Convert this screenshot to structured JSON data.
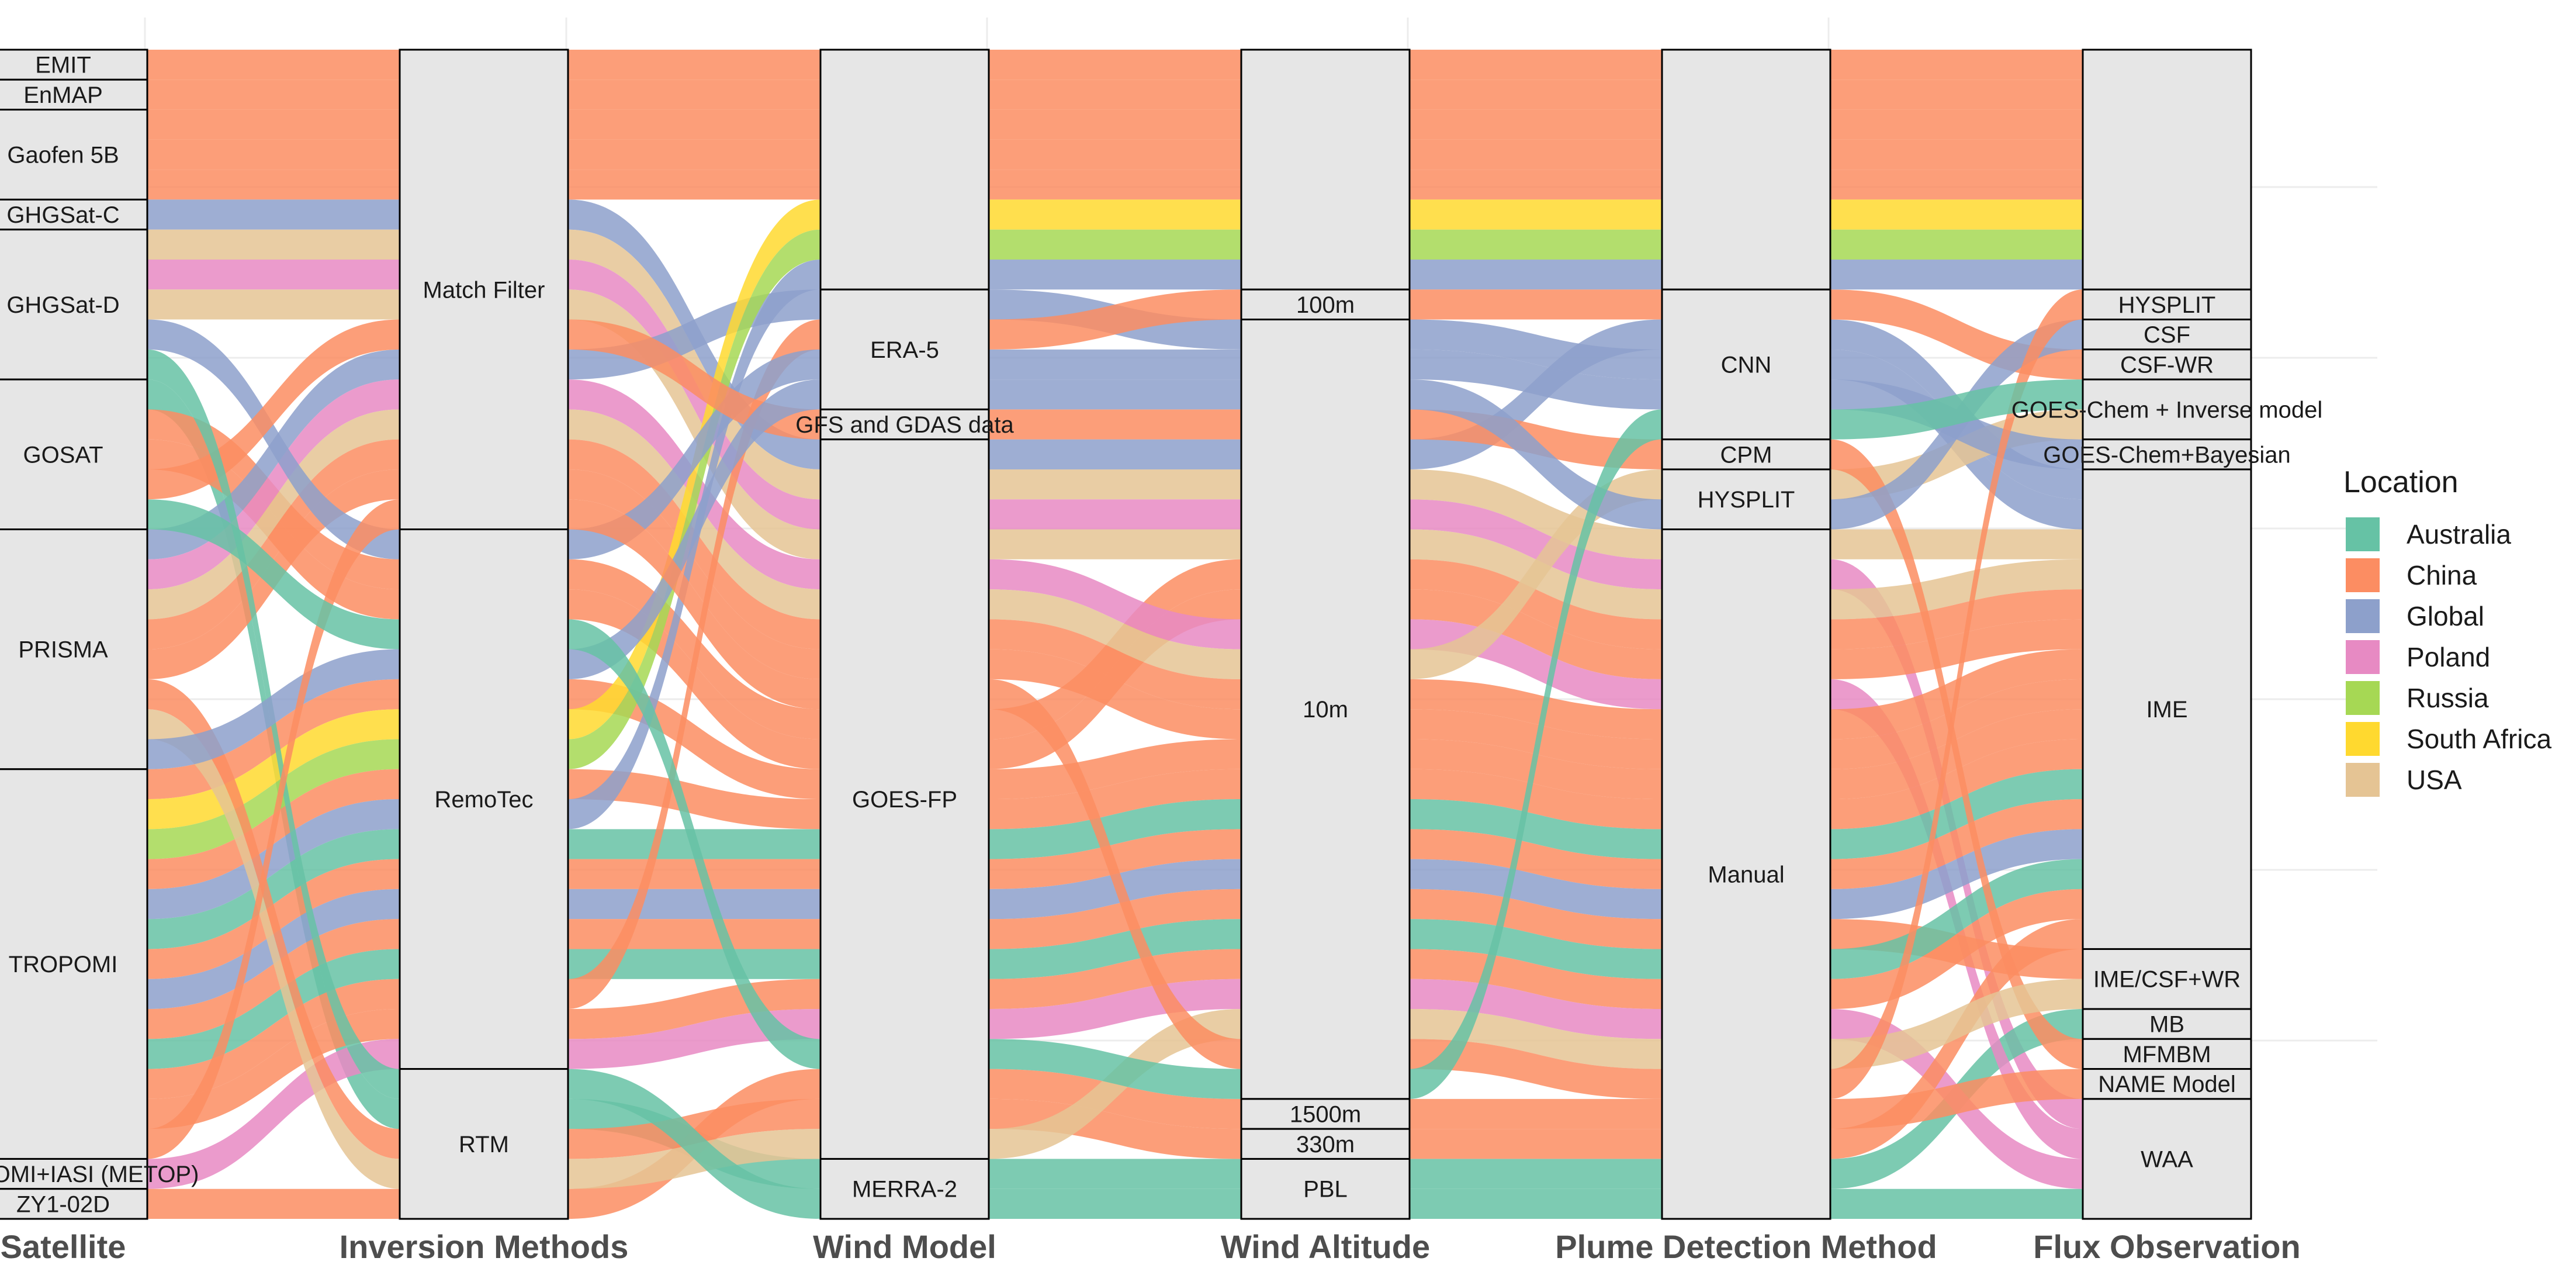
{
  "chart_data": {
    "type": "alluvial",
    "title": "",
    "legend_title": "Location",
    "legend_position": "right",
    "axes": [
      "Satellite",
      "Inversion Methods",
      "Wind Model",
      "Wind Altitude",
      "Plume Detection Method",
      "Flux Observation"
    ],
    "nodes": [
      [
        "EMIT",
        "EnMAP",
        "Gaofen 5B",
        "GHGSat-C",
        "GHGSat-D",
        "GOSAT",
        "PRISMA",
        "TROPOMI",
        "TROPOMI+IASI (METOP)",
        "ZY1-02D"
      ],
      [
        "Match Filter",
        "RemoTec",
        "RTM"
      ],
      [
        "",
        "ERA-5",
        "GFS and GDAS data",
        "GOES-FP",
        "MERRA-2"
      ],
      [
        "",
        "100m",
        "10m",
        "1500m",
        "330m",
        "PBL"
      ],
      [
        "",
        "CNN",
        "CPM",
        "HYSPLIT",
        "Manual"
      ],
      [
        "",
        "HYSPLIT",
        "CSF",
        "CSF-WR",
        "GOES-Chem + Inverse model",
        "GOES-Chem+Bayesian",
        "IME",
        "IME/CSF+WR",
        "MB",
        "MFMBM",
        "NAME Model",
        "WAA"
      ]
    ],
    "locations": [
      "Australia",
      "China",
      "Global",
      "Poland",
      "Russia",
      "South Africa",
      "USA"
    ],
    "colors": {
      "Australia": "#66c2a5",
      "China": "#fc8d62",
      "Global": "#8da0cb",
      "Poland": "#e78ac3",
      "Russia": "#a6d854",
      "South Africa": "#ffd92f",
      "USA": "#e5c494"
    },
    "flows": [
      {
        "location": "China",
        "path": [
          0,
          0,
          0,
          0,
          0,
          0
        ]
      },
      {
        "location": "China",
        "path": [
          1,
          0,
          0,
          0,
          0,
          0
        ]
      },
      {
        "location": "China",
        "path": [
          2,
          0,
          0,
          0,
          0,
          0
        ]
      },
      {
        "location": "China",
        "path": [
          2,
          0,
          0,
          0,
          0,
          0
        ]
      },
      {
        "location": "China",
        "path": [
          2,
          0,
          0,
          0,
          0,
          0
        ]
      },
      {
        "location": "Global",
        "path": [
          3,
          0,
          3,
          2,
          1,
          6
        ]
      },
      {
        "location": "USA",
        "path": [
          4,
          0,
          3,
          2,
          4,
          6
        ]
      },
      {
        "location": "Poland",
        "path": [
          4,
          0,
          3,
          2,
          4,
          11
        ]
      },
      {
        "location": "USA",
        "path": [
          4,
          0,
          3,
          2,
          4,
          6
        ]
      },
      {
        "location": "Australia",
        "path": [
          5,
          2,
          4,
          5,
          4,
          8
        ]
      },
      {
        "location": "China",
        "path": [
          5,
          1,
          3,
          2,
          4,
          6
        ]
      },
      {
        "location": "China",
        "path": [
          5,
          1,
          3,
          2,
          4,
          6
        ]
      },
      {
        "location": "Global",
        "path": [
          6,
          0,
          1,
          2,
          1,
          6
        ]
      },
      {
        "location": "Poland",
        "path": [
          6,
          0,
          3,
          2,
          4,
          11
        ]
      },
      {
        "location": "USA",
        "path": [
          6,
          0,
          3,
          2,
          3,
          4
        ]
      },
      {
        "location": "China",
        "path": [
          6,
          0,
          3,
          2,
          4,
          6
        ]
      },
      {
        "location": "China",
        "path": [
          6,
          0,
          3,
          2,
          4,
          6
        ]
      },
      {
        "location": "China",
        "path": [
          7,
          1,
          3,
          2,
          4,
          6
        ]
      },
      {
        "location": "South Africa",
        "path": [
          7,
          1,
          0,
          0,
          0,
          0
        ]
      },
      {
        "location": "Russia",
        "path": [
          7,
          1,
          0,
          0,
          0,
          0
        ]
      },
      {
        "location": "China",
        "path": [
          7,
          1,
          3,
          2,
          4,
          6
        ]
      },
      {
        "location": "Global",
        "path": [
          7,
          1,
          0,
          0,
          0,
          0
        ]
      },
      {
        "location": "Australia",
        "path": [
          7,
          1,
          3,
          2,
          4,
          6
        ]
      },
      {
        "location": "China",
        "path": [
          7,
          1,
          3,
          2,
          4,
          6
        ]
      },
      {
        "location": "Global",
        "path": [
          7,
          1,
          3,
          2,
          4,
          6
        ]
      },
      {
        "location": "China",
        "path": [
          7,
          1,
          3,
          2,
          4,
          7
        ]
      },
      {
        "location": "Australia",
        "path": [
          7,
          1,
          3,
          2,
          4,
          6
        ]
      },
      {
        "location": "China",
        "path": [
          7,
          1,
          1,
          1,
          1,
          3
        ]
      },
      {
        "location": "China",
        "path": [
          7,
          1,
          3,
          2,
          4,
          6
        ]
      },
      {
        "location": "Poland",
        "path": [
          8,
          1,
          3,
          2,
          4,
          11
        ]
      },
      {
        "location": "China",
        "path": [
          9,
          2,
          3,
          3,
          4,
          10
        ]
      },
      {
        "location": "Global",
        "path": [
          4,
          1,
          1,
          2,
          1,
          5
        ]
      },
      {
        "location": "China",
        "path": [
          5,
          0,
          2,
          2,
          2,
          9
        ]
      },
      {
        "location": "China",
        "path": [
          6,
          2,
          3,
          4,
          4,
          6
        ]
      },
      {
        "location": "USA",
        "path": [
          6,
          2,
          3,
          2,
          4,
          7
        ]
      },
      {
        "location": "Australia",
        "path": [
          4,
          2,
          4,
          5,
          4,
          11
        ]
      },
      {
        "location": "Global",
        "path": [
          6,
          1,
          1,
          2,
          3,
          2
        ]
      },
      {
        "location": "China",
        "path": [
          7,
          0,
          3,
          2,
          4,
          1
        ]
      },
      {
        "location": "Australia",
        "path": [
          5,
          1,
          3,
          2,
          1,
          4
        ]
      }
    ]
  }
}
